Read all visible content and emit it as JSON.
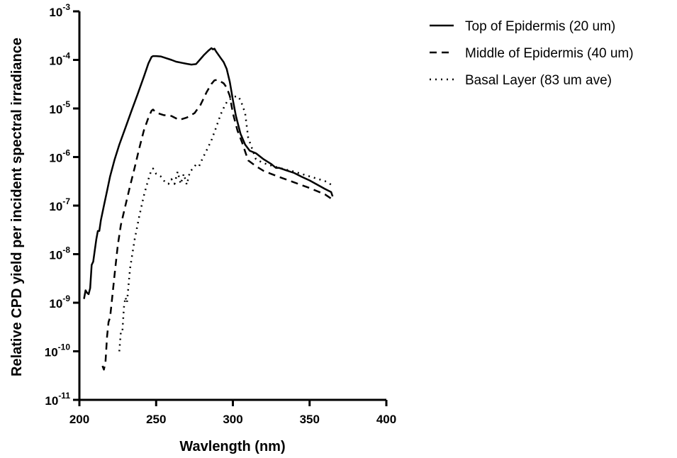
{
  "chart_data": {
    "type": "line",
    "xlabel": "Wavlength (nm)",
    "ylabel": "Relative CPD yield per incident spectral irradiance",
    "xlim": [
      200,
      400
    ],
    "xticks": [
      "200",
      "250",
      "300",
      "350",
      "400"
    ],
    "ylim_log10": [
      -11,
      -3
    ],
    "yscale": "log",
    "yticks": [
      {
        "base": "10",
        "exp": "-11"
      },
      {
        "base": "10",
        "exp": "-10"
      },
      {
        "base": "10",
        "exp": "-9"
      },
      {
        "base": "10",
        "exp": "-8"
      },
      {
        "base": "10",
        "exp": "-7"
      },
      {
        "base": "10",
        "exp": "-6"
      },
      {
        "base": "10",
        "exp": "-5"
      },
      {
        "base": "10",
        "exp": "-4"
      },
      {
        "base": "10",
        "exp": "-3"
      }
    ],
    "grid": false,
    "legend_position": "top-right",
    "series": [
      {
        "name": "Top of Epidermis (20 um)",
        "dash": "solid",
        "x": [
          203,
          204,
          205,
          206,
          207,
          208,
          209,
          210,
          211,
          212,
          213,
          214,
          216,
          218,
          220,
          223,
          226,
          230,
          234,
          238,
          242,
          245,
          247,
          248,
          250,
          253,
          256,
          260,
          263,
          266,
          270,
          273,
          276,
          279,
          281,
          284,
          286,
          287,
          288,
          289,
          290,
          292,
          294,
          296,
          298,
          300,
          302,
          305,
          308,
          311,
          315,
          320,
          325,
          328,
          330,
          335,
          340,
          345,
          350,
          355,
          360,
          364,
          365
        ],
        "y": [
          1.2e-09,
          1.8e-09,
          1.6e-09,
          1.5e-09,
          2e-09,
          6e-09,
          7e-09,
          1.2e-08,
          2e-08,
          3e-08,
          3e-08,
          5e-08,
          1e-07,
          2e-07,
          4e-07,
          9e-07,
          1.8e-06,
          4e-06,
          9e-06,
          2e-05,
          4.5e-05,
          8.5e-05,
          0.000115,
          0.00012,
          0.00012,
          0.000118,
          0.00011,
          0.0001,
          9.2e-05,
          8.8e-05,
          8.3e-05,
          8e-05,
          8.2e-05,
          0.000105,
          0.000125,
          0.000155,
          0.000175,
          0.000165,
          0.00017,
          0.00015,
          0.000135,
          0.00011,
          9e-05,
          6.5e-05,
          3.5e-05,
          1.5e-05,
          7e-06,
          3e-06,
          1.8e-06,
          1.35e-06,
          1.2e-06,
          9e-07,
          7.2e-07,
          6e-07,
          6e-07,
          5.3e-07,
          4.7e-07,
          3.9e-07,
          3.3e-07,
          2.7e-07,
          2.2e-07,
          1.9e-07,
          1.55e-07
        ]
      },
      {
        "name": "Middle of Epidermis (40 um)",
        "dash": "dashed",
        "x": [
          215,
          216,
          217,
          218,
          219,
          220,
          221,
          223,
          225,
          227,
          230,
          233,
          236,
          239,
          242,
          245,
          247,
          248,
          250,
          255,
          260,
          265,
          270,
          275,
          279,
          283,
          286,
          288,
          290,
          292,
          294,
          296,
          298,
          300,
          303,
          306,
          308,
          310,
          315,
          320,
          325,
          330,
          340,
          350,
          360,
          364,
          365
        ],
        "y": [
          5e-11,
          4.2e-11,
          6e-11,
          2e-10,
          4e-10,
          5e-10,
          1e-09,
          4e-09,
          1.5e-08,
          4e-08,
          1e-07,
          2.5e-07,
          6e-07,
          1.5e-06,
          3.5e-06,
          6.5e-06,
          9e-06,
          9.5e-06,
          8.2e-06,
          7.3e-06,
          7e-06,
          5.8e-06,
          6.5e-06,
          8e-06,
          1.2e-05,
          2.2e-05,
          3.2e-05,
          3.8e-05,
          3.9e-05,
          3.6e-05,
          3.3e-05,
          2.7e-05,
          1.8e-05,
          8e-06,
          3.5e-06,
          2e-06,
          1.3e-06,
          8.5e-07,
          6.5e-07,
          5.2e-07,
          4.5e-07,
          3.9e-07,
          3e-07,
          2.3e-07,
          1.7e-07,
          1.4e-07,
          1.2e-07
        ]
      },
      {
        "name": "Basal Layer (83 um ave)",
        "dash": "dotted",
        "x": [
          226,
          227,
          228,
          229,
          230,
          231,
          233,
          236,
          239,
          242,
          245,
          247,
          248,
          250,
          253,
          256,
          258,
          260,
          262,
          264,
          266,
          268,
          270,
          272,
          274,
          276,
          278,
          280,
          283,
          286,
          289,
          292,
          295,
          297,
          299,
          301,
          303,
          305,
          308,
          310,
          315,
          320,
          330,
          340,
          350,
          360,
          365
        ],
        "y": [
          1e-10,
          2.5e-10,
          2.5e-10,
          8e-10,
          1.3e-09,
          1e-09,
          5e-09,
          2e-08,
          6e-08,
          1.6e-07,
          3.5e-07,
          5.5e-07,
          5.8e-07,
          4.5e-07,
          4e-07,
          3e-07,
          2.8e-07,
          3.5e-07,
          2.8e-07,
          5e-07,
          2.8e-07,
          4.5e-07,
          2.7e-07,
          5e-07,
          5.8e-07,
          7e-07,
          6.5e-07,
          9e-07,
          1.4e-06,
          2.2e-06,
          4e-06,
          7.5e-06,
          1.2e-05,
          1.5e-05,
          1.6e-05,
          1.75e-05,
          1.8e-05,
          1.5e-05,
          8e-06,
          2.5e-06,
          9e-07,
          7.5e-07,
          6e-07,
          5e-07,
          4e-07,
          3.2e-07,
          2.6e-07
        ]
      }
    ]
  }
}
